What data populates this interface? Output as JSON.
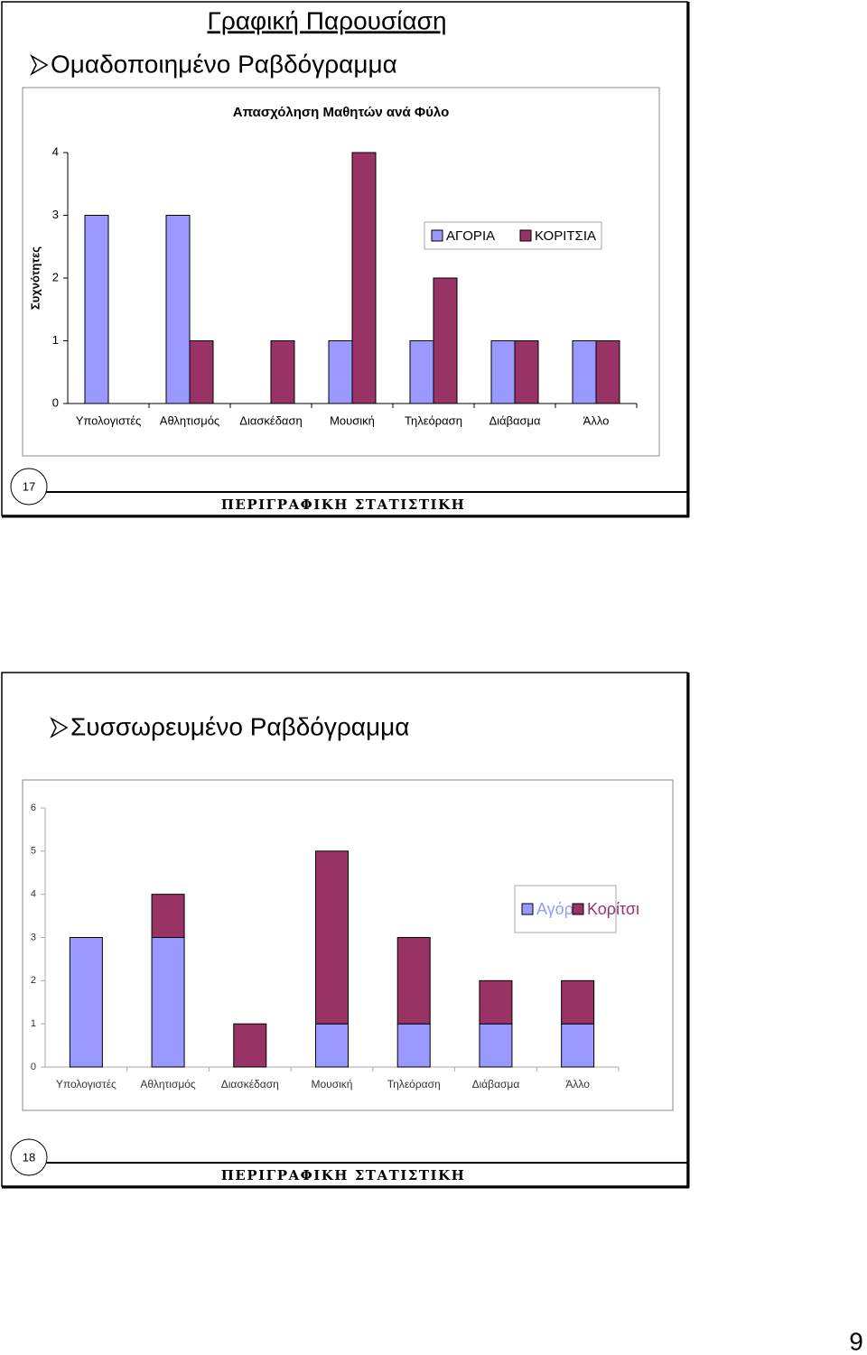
{
  "slides": [
    {
      "title": "Γραφική Παρουσίαση",
      "bullet": "Ομαδοποιημένο Ραβδόγραμμα",
      "number": 17,
      "footer": "ΠΕΡΙΓΡΑΦΙΚΗ ΣΤΑΤΙΣΤΙΚΗ"
    },
    {
      "bullet": "Συσσωρευμένο Ραβδόγραμμα",
      "number": 18,
      "footer": "ΠΕΡΙΓΡΑΦΙΚΗ ΣΤΑΤΙΣΤΙΚΗ"
    }
  ],
  "page_number": 9,
  "chart_data": [
    {
      "type": "bar",
      "title": "Απασχόληση Μαθητών ανά Φύλο",
      "y_label": "Συχνότητες",
      "categories": [
        "Υπολογιστές",
        "Αθλητισμός",
        "Διασκέδαση",
        "Μουσική",
        "Τηλεόραση",
        "Διάβασμα",
        "Άλλο"
      ],
      "series": [
        {
          "name": "ΑΓΟΡΙΑ",
          "color": "#9999ff",
          "values": [
            3,
            3,
            0,
            1,
            1,
            1,
            1
          ]
        },
        {
          "name": "ΚΟΡΙΤΣΙΑ",
          "color": "#993366",
          "values": [
            0,
            1,
            1,
            4,
            2,
            1,
            1
          ]
        }
      ],
      "ylim": [
        0,
        4
      ],
      "yticks": [
        0,
        1,
        2,
        3,
        4
      ],
      "grid": false,
      "legend": "right"
    },
    {
      "type": "stacked_bar",
      "categories": [
        "Υπολογιστές",
        "Αθλητισμός",
        "Διασκέδαση",
        "Μουσική",
        "Τηλεόραση",
        "Διάβασμα",
        "Άλλο"
      ],
      "series": [
        {
          "name": "Αγόρι",
          "color": "#9999ff",
          "values": [
            3,
            3,
            0,
            1,
            1,
            1,
            1
          ]
        },
        {
          "name": "Κορίτσι",
          "color": "#993366",
          "values": [
            0,
            1,
            1,
            4,
            2,
            1,
            1
          ]
        }
      ],
      "ylim": [
        0,
        6
      ],
      "yticks": [
        0,
        1,
        2,
        3,
        4,
        5,
        6
      ],
      "grid": false,
      "legend": "right"
    }
  ]
}
